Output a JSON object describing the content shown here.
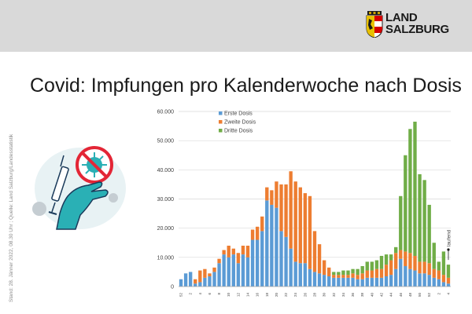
{
  "header": {
    "logo_line1": "LAND",
    "logo_line2": "SALZBURG"
  },
  "title": "Covid: Impfungen pro Kalenderwoche nach Dosis",
  "side_note": "Stand: 28. Jänner 2022, 08.30 Uhr ; Quelle: Land Salzburg/Landesstatistik",
  "colors": {
    "erste": "#5b9bd5",
    "zweite": "#ed7d31",
    "dritte": "#70ad47",
    "teal": "#2ab0b5"
  },
  "chart_data": {
    "type": "bar",
    "stacked": true,
    "categories": [
      "52",
      "1",
      "2",
      "3",
      "4",
      "5",
      "6",
      "7",
      "8",
      "9",
      "10",
      "11",
      "12",
      "13",
      "14",
      "15",
      "16",
      "17",
      "18",
      "19",
      "20",
      "21",
      "22",
      "23",
      "24",
      "25",
      "26",
      "27",
      "28",
      "29",
      "30",
      "31",
      "32",
      "33",
      "34",
      "35",
      "36",
      "37",
      "38",
      "39",
      "40",
      "41",
      "42",
      "43",
      "44",
      "45",
      "46",
      "47",
      "48",
      "49",
      "50",
      "51",
      "52",
      "1",
      "2",
      "3",
      "4"
    ],
    "tick_labels": [
      "52",
      "2",
      "4",
      "6",
      "8",
      "10",
      "12",
      "14",
      "16",
      "18",
      "20",
      "22",
      "24",
      "26",
      "28",
      "30",
      "32",
      "34",
      "36",
      "38",
      "40",
      "42",
      "44",
      "46",
      "48",
      "50",
      "52",
      "2",
      "4"
    ],
    "ylim": [
      0,
      60000
    ],
    "yticks": [
      "0",
      "10.000",
      "20.000",
      "30.000",
      "40.000",
      "50.000",
      "60.000"
    ],
    "legend_position": "top-left",
    "annotation": "laufend",
    "grid": true,
    "series": [
      {
        "name": "Erste Dosis",
        "values": [
          2500,
          4500,
          5000,
          1000,
          1500,
          3000,
          3500,
          5000,
          8000,
          11000,
          10000,
          11000,
          8000,
          11000,
          10000,
          16000,
          16000,
          19000,
          29500,
          28000,
          27000,
          19000,
          17000,
          13000,
          8500,
          8000,
          8000,
          6000,
          5000,
          4500,
          4000,
          3500,
          3000,
          3000,
          3000,
          3000,
          3000,
          2500,
          2500,
          3000,
          3000,
          3000,
          3000,
          3500,
          4000,
          6000,
          9500,
          7000,
          6000,
          5500,
          4500,
          4500,
          4000,
          3000,
          2500,
          1500,
          1000
        ]
      },
      {
        "name": "Zweite Dosis",
        "values": [
          0,
          0,
          0,
          1500,
          4000,
          3000,
          1000,
          1500,
          1500,
          1500,
          4000,
          2000,
          3500,
          3000,
          4000,
          3500,
          4500,
          5000,
          4500,
          5000,
          9000,
          16000,
          18000,
          26500,
          27500,
          26000,
          24000,
          25000,
          14000,
          10000,
          5000,
          3000,
          1000,
          1000,
          1000,
          1000,
          1500,
          1500,
          2000,
          2500,
          2500,
          3000,
          3000,
          4000,
          5000,
          5500,
          3000,
          5000,
          5500,
          5000,
          4000,
          4000,
          4000,
          3000,
          3000,
          2500,
          2000
        ]
      },
      {
        "name": "Dritte Dosis",
        "values": [
          0,
          0,
          0,
          0,
          0,
          0,
          0,
          0,
          0,
          0,
          0,
          0,
          0,
          0,
          0,
          0,
          0,
          0,
          0,
          0,
          0,
          0,
          0,
          0,
          0,
          0,
          0,
          0,
          0,
          0,
          0,
          0,
          1000,
          1000,
          1500,
          1500,
          1500,
          2000,
          2500,
          3000,
          3000,
          3000,
          4500,
          3500,
          2000,
          2000,
          18500,
          33000,
          42500,
          46000,
          30000,
          28000,
          20000,
          9000,
          3000,
          8000,
          4500
        ]
      }
    ]
  }
}
